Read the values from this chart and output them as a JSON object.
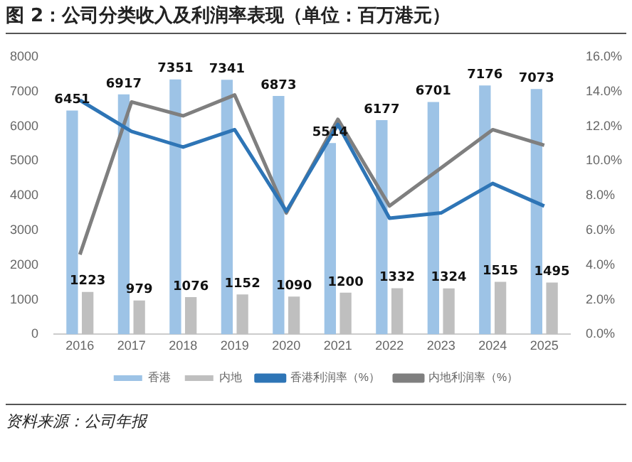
{
  "chart_data": {
    "type": "bar",
    "title": "图 2：公司分类收入及利润率表现（单位：百万港元）",
    "categories": [
      "2016",
      "2017",
      "2018",
      "2019",
      "2020",
      "2021",
      "2022",
      "2023",
      "2024",
      "2025"
    ],
    "series": [
      {
        "name": "香港",
        "color": "#9dc3e6",
        "values": [
          6451,
          6917,
          7351,
          7341,
          6873,
          5514,
          6177,
          6701,
          7176,
          7073
        ],
        "value_labels": [
          "6451",
          "6917",
          "7351",
          "7341",
          "6873",
          "5514",
          "6177",
          "6701",
          "7176",
          "7073"
        ]
      },
      {
        "name": "内地",
        "color": "#bfbfbf",
        "values": [
          1223,
          979,
          1076,
          1152,
          1090,
          1200,
          1332,
          1324,
          1515,
          1495
        ],
        "value_labels": [
          "1223",
          "979",
          "1076",
          "1152",
          "1090",
          "1200",
          "1332",
          "1324",
          "1515",
          "1495"
        ]
      },
      {
        "name": "香港利润率（%）",
        "type": "line",
        "axis": "y2",
        "color": "#2e75b6",
        "values": [
          13.5,
          11.7,
          10.8,
          11.8,
          7.1,
          12.1,
          6.7,
          7.0,
          8.7,
          7.4
        ]
      },
      {
        "name": "内地利润率（%）",
        "type": "line",
        "axis": "y2",
        "color": "#7f7f7f",
        "values": [
          4.6,
          13.4,
          12.6,
          13.8,
          7.0,
          12.4,
          7.4,
          9.6,
          11.8,
          10.9
        ]
      }
    ],
    "ylim": [
      0,
      8000
    ],
    "yticks": [
      0,
      1000,
      2000,
      3000,
      4000,
      5000,
      6000,
      7000,
      8000
    ],
    "y2lim": [
      0,
      16
    ],
    "y2ticks": [
      {
        "value": 0,
        "label": "0.0%"
      },
      {
        "value": 2,
        "label": "2.0%"
      },
      {
        "value": 4,
        "label": "4.0%"
      },
      {
        "value": 6,
        "label": "6.0%"
      },
      {
        "value": 8,
        "label": "8.0%"
      },
      {
        "value": 10,
        "label": "10.0%"
      },
      {
        "value": 12,
        "label": "12.0%"
      },
      {
        "value": 14,
        "label": "14.0%"
      },
      {
        "value": 16,
        "label": "16.0%"
      }
    ],
    "grid": false,
    "legend": "bottom",
    "marker": "none",
    "line_style": "solid",
    "annotations": [
      "资料来源：公司年报"
    ]
  }
}
